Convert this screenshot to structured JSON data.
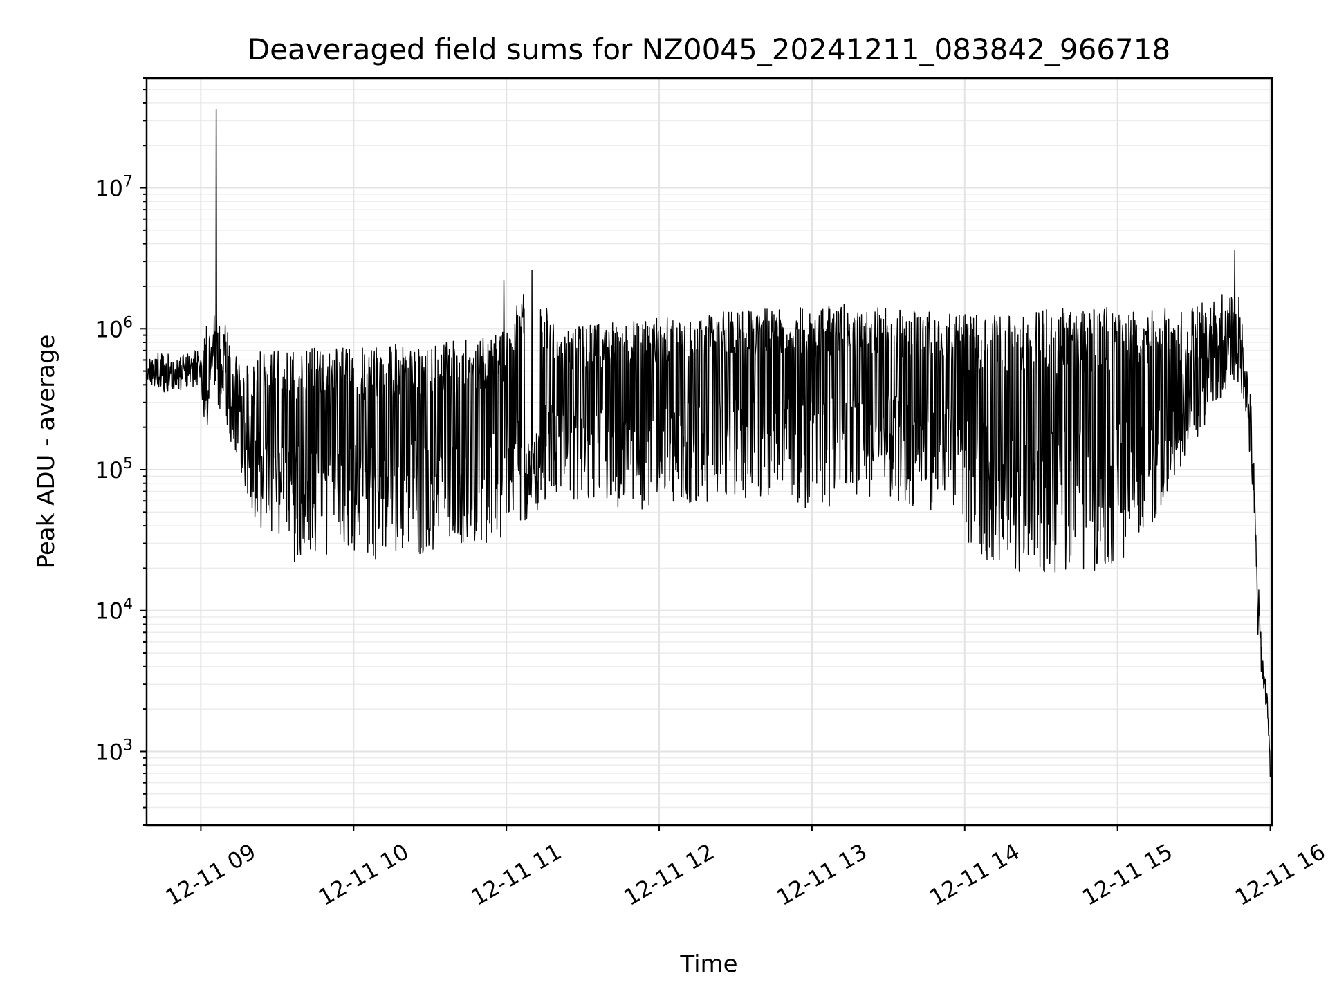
{
  "chart_data": {
    "type": "line",
    "title": "Deaveraged field sums for NZ0045_20241211_083842_966718",
    "xlabel": "Time",
    "ylabel": "Peak ADU - average",
    "yscale": "log",
    "ylim": [
      300,
      60000000
    ],
    "xlim": [
      "2024-12-11 08:38:42",
      "2024-12-11 16:00:40"
    ],
    "grid": true,
    "line_color": "#000000",
    "x_ticks": [
      "12-11 09",
      "12-11 10",
      "12-11 11",
      "12-11 12",
      "12-11 13",
      "12-11 14",
      "12-11 15",
      "12-11 16"
    ],
    "y_ticks": [
      {
        "base": "10",
        "exp": "3",
        "value": 1000
      },
      {
        "base": "10",
        "exp": "4",
        "value": 10000
      },
      {
        "base": "10",
        "exp": "5",
        "value": 100000
      },
      {
        "base": "10",
        "exp": "6",
        "value": 1000000
      },
      {
        "base": "10",
        "exp": "7",
        "value": 10000000
      }
    ],
    "series": [
      {
        "style": "envelope",
        "x": [
          "08:39",
          "08:45",
          "08:50",
          "08:55",
          "09:00",
          "09:02",
          "09:05",
          "09:08",
          "09:10",
          "09:12",
          "09:15",
          "09:18",
          "09:20",
          "09:25",
          "09:30",
          "09:35",
          "09:40",
          "09:45",
          "09:50",
          "09:55",
          "10:00",
          "10:10",
          "10:20",
          "10:30",
          "10:40",
          "10:50",
          "11:00",
          "11:10",
          "11:20",
          "11:30",
          "11:40",
          "11:50",
          "12:00",
          "12:10",
          "12:20",
          "12:30",
          "12:40",
          "12:50",
          "13:00",
          "13:10",
          "13:20",
          "13:30",
          "13:40",
          "13:50",
          "14:00",
          "14:10",
          "14:20",
          "14:30",
          "14:40",
          "14:50",
          "15:00",
          "15:10",
          "15:20",
          "15:30",
          "15:40",
          "15:45",
          "15:50",
          "15:53",
          "15:55",
          "15:57",
          "15:59",
          "16:00"
        ],
        "low": [
          420000,
          350000,
          360000,
          380000,
          400000,
          150000,
          350000,
          250000,
          200000,
          150000,
          110000,
          70000,
          50000,
          35000,
          27000,
          22000,
          22000,
          24000,
          24000,
          25000,
          24000,
          23000,
          23000,
          25000,
          28000,
          27000,
          30000,
          45000,
          55000,
          60000,
          55000,
          50000,
          45000,
          55000,
          60000,
          65000,
          60000,
          55000,
          50000,
          55000,
          58000,
          60000,
          55000,
          50000,
          30000,
          22000,
          19000,
          18000,
          18000,
          19000,
          22000,
          30000,
          70000,
          150000,
          300000,
          450000,
          300000,
          60000,
          6000,
          3000,
          1700,
          600
        ],
        "high": [
          620000,
          700000,
          620000,
          680000,
          750000,
          900000,
          36000000,
          800000,
          1250000,
          650000,
          700000,
          650000,
          700000,
          680000,
          700000,
          720000,
          720000,
          730000,
          740000,
          730000,
          740000,
          760000,
          780000,
          800000,
          820000,
          850000,
          1000000,
          2600000,
          1000000,
          1050000,
          1100000,
          1150000,
          1200000,
          1250000,
          1300000,
          1350000,
          1400000,
          1400000,
          1450000,
          1500000,
          1450000,
          1400000,
          1400000,
          1350000,
          1300000,
          1300000,
          1350000,
          1400000,
          1400000,
          1450000,
          1450000,
          1400000,
          1400000,
          1500000,
          1600000,
          3600000,
          900000,
          250000,
          20000,
          5000,
          2500,
          800
        ]
      }
    ],
    "annotations": [
      {
        "x": "09:06",
        "y": 36000000,
        "note": "spike"
      },
      {
        "x": "10:59",
        "y": 2200000,
        "note": "spike"
      },
      {
        "x": "11:10",
        "y": 2600000,
        "note": "spike"
      },
      {
        "x": "15:46",
        "y": 3600000,
        "note": "spike"
      }
    ]
  }
}
